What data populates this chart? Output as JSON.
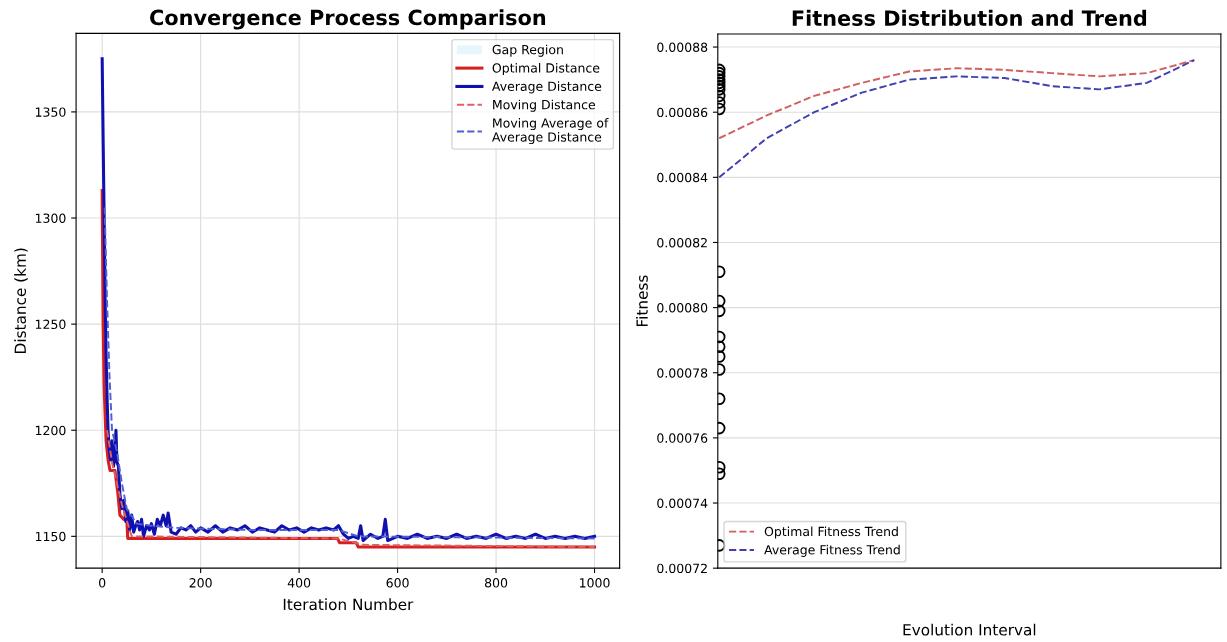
{
  "chart_data": [
    {
      "type": "line",
      "title": "Convergence Process Comparison",
      "xlabel": "Iteration Number",
      "ylabel": "Distance (km)",
      "xlim": [
        -53,
        1051
      ],
      "ylim": [
        1135,
        1387
      ],
      "xticks": [
        0,
        200,
        400,
        600,
        800,
        1000
      ],
      "yticks": [
        1150,
        1200,
        1250,
        1300,
        1350
      ],
      "grid": true,
      "legend": "top right",
      "series": [
        {
          "name": "Gap Region",
          "type": "area",
          "color": "#d4f0fb"
        },
        {
          "name": "Optimal Distance",
          "color": "#d62020",
          "line_style": "solid",
          "x": [
            0,
            2,
            4,
            8,
            12,
            16,
            26,
            32,
            36,
            44,
            50,
            52,
            478,
            482,
            516,
            520,
            1000
          ],
          "values": [
            1313,
            1250,
            1220,
            1195,
            1186,
            1181,
            1181,
            1170,
            1160,
            1158,
            1158,
            1149,
            1149,
            1147,
            1147,
            1145,
            1145
          ]
        },
        {
          "name": "Average Distance",
          "color": "#1010b0",
          "line_style": "solid",
          "x": [
            0,
            2,
            4,
            6,
            8,
            10,
            12,
            14,
            17,
            20,
            23,
            26,
            28,
            30,
            33,
            36,
            40,
            44,
            48,
            52,
            56,
            60,
            64,
            68,
            72,
            76,
            80,
            84,
            90,
            96,
            100,
            106,
            112,
            118,
            124,
            130,
            134,
            140,
            150,
            160,
            170,
            180,
            190,
            200,
            215,
            230,
            245,
            260,
            275,
            290,
            305,
            320,
            335,
            350,
            365,
            380,
            395,
            410,
            425,
            440,
            455,
            470,
            480,
            490,
            500,
            510,
            520,
            525,
            530,
            545,
            560,
            570,
            575,
            580,
            600,
            620,
            640,
            660,
            680,
            700,
            720,
            740,
            760,
            780,
            800,
            820,
            840,
            860,
            880,
            900,
            920,
            940,
            960,
            980,
            1000
          ],
          "values": [
            1375,
            1336,
            1300,
            1262,
            1235,
            1215,
            1200,
            1192,
            1186,
            1195,
            1183,
            1188,
            1200,
            1185,
            1183,
            1170,
            1163,
            1167,
            1157,
            1162,
            1153,
            1160,
            1152,
            1155,
            1157,
            1153,
            1158,
            1150,
            1155,
            1153,
            1156,
            1151,
            1158,
            1155,
            1160,
            1155,
            1161,
            1152,
            1151,
            1154,
            1153,
            1155,
            1152,
            1154,
            1152,
            1155,
            1152,
            1154,
            1153,
            1155,
            1152,
            1154,
            1153,
            1152,
            1155,
            1153,
            1154,
            1152,
            1154,
            1153,
            1154,
            1153,
            1155,
            1151,
            1149,
            1150,
            1149,
            1155,
            1148,
            1151,
            1149,
            1150,
            1158,
            1148,
            1150,
            1149,
            1151,
            1149,
            1150,
            1149,
            1151,
            1149,
            1150,
            1149,
            1151,
            1149,
            1150,
            1149,
            1151,
            1149,
            1150,
            1149,
            1150,
            1149,
            1150
          ]
        },
        {
          "name": "Moving Distance",
          "color": "#e06060",
          "line_style": "dashed",
          "x": [
            10,
            20,
            40,
            60,
            480,
            530,
            1000
          ],
          "values": [
            1200,
            1185,
            1165,
            1150,
            1149,
            1146,
            1145
          ]
        },
        {
          "name": "Moving Average of\nAverage Distance",
          "color": "#5060d0",
          "line_style": "dashed",
          "x": [
            5,
            10,
            15,
            20,
            30,
            40,
            50,
            70,
            100,
            150,
            300,
            480,
            520,
            1000
          ],
          "values": [
            1305,
            1260,
            1225,
            1200,
            1190,
            1175,
            1163,
            1156,
            1155,
            1154,
            1153,
            1153,
            1150,
            1149
          ]
        }
      ]
    },
    {
      "type": "line",
      "title": "Fitness Distribution and Trend",
      "xlabel": "Evolution Interval",
      "ylabel": "Fitness",
      "categories": [
        null,
        null,
        null,
        null,
        null,
        null,
        null,
        null,
        null,
        null,
        null
      ],
      "ylim": [
        0.00072,
        0.000884
      ],
      "tick_labels": "y",
      "yticks": [
        {
          "value": 0.00072,
          "label": "0.00072"
        },
        {
          "value": 0.00074,
          "label": "0.00074"
        },
        {
          "value": 0.00076,
          "label": "0.00076"
        },
        {
          "value": 0.00078,
          "label": "0.00078"
        },
        {
          "value": 0.0008,
          "label": "0.00080"
        },
        {
          "value": 0.00082,
          "label": "0.00082"
        },
        {
          "value": 0.00084,
          "label": "0.00084"
        },
        {
          "value": 0.00086,
          "label": "0.00086"
        },
        {
          "value": 0.00088,
          "label": "0.00088"
        }
      ],
      "grid": "y",
      "legend": "bottom left",
      "series": [
        {
          "type": "scatter",
          "color": "#000000",
          "marker": "circle",
          "x": [
            null,
            null,
            null,
            null,
            null,
            null,
            null,
            null,
            null,
            null,
            null,
            null,
            null,
            null,
            null,
            null,
            null,
            null,
            null,
            null,
            null,
            null
          ],
          "values": [
            0.000811,
            0.000802,
            0.000799,
            0.000791,
            0.000788,
            0.000785,
            0.000781,
            0.000772,
            0.000763,
            0.000751,
            0.000749,
            0.000727,
            0.000861,
            0.000863,
            0.000865,
            0.000867,
            0.000868,
            0.000869,
            0.00087,
            0.000871,
            0.000872,
            0.000873
          ]
        },
        {
          "name": "Optimal Fitness Trend",
          "color": "#d06060",
          "line_style": "dashed",
          "values": [
            0.000852,
            0.000859,
            0.000865,
            0.000869,
            0.0008725,
            0.0008735,
            0.000873,
            0.000872,
            0.000871,
            0.000872,
            0.000876
          ]
        },
        {
          "name": "Average Fitness Trend",
          "color": "#4040b0",
          "line_style": "dashed",
          "values": [
            0.00084,
            0.000852,
            0.00086,
            0.000866,
            0.00087,
            0.000871,
            0.0008705,
            0.000868,
            0.000867,
            0.000869,
            0.000876
          ]
        }
      ]
    }
  ]
}
